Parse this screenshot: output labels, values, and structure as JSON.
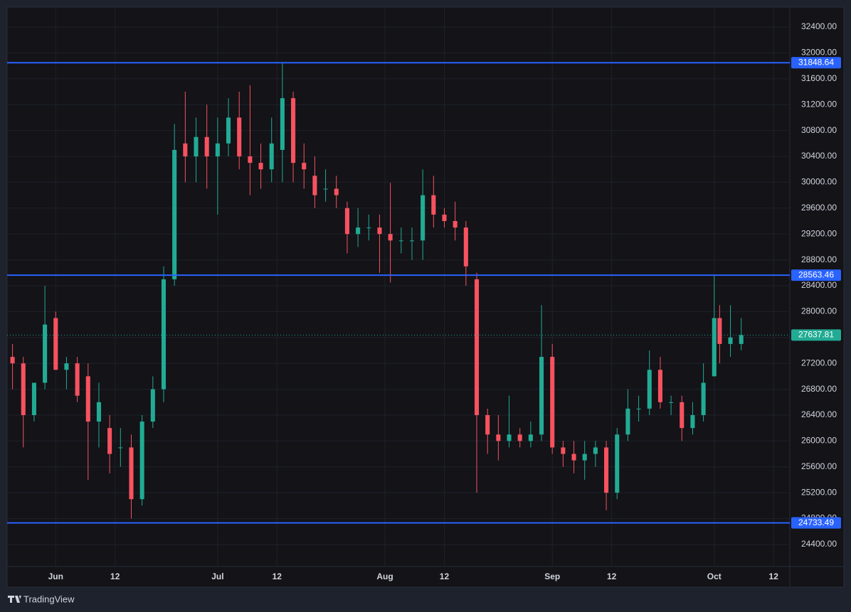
{
  "brand": "TradingView",
  "chart_data": {
    "type": "candlestick",
    "x": [
      "May 24",
      "May 26",
      "May 28",
      "May 30",
      "Jun 1",
      "Jun 3",
      "Jun 5",
      "Jun 7",
      "Jun 9",
      "Jun 11",
      "Jun 13",
      "Jun 15",
      "Jun 17",
      "Jun 19",
      "Jun 21",
      "Jun 23",
      "Jun 25",
      "Jun 27",
      "Jun 29",
      "Jul 1",
      "Jul 3",
      "Jul 5",
      "Jul 7",
      "Jul 9",
      "Jul 11",
      "Jul 13",
      "Jul 15",
      "Jul 17",
      "Jul 19",
      "Jul 21",
      "Jul 23",
      "Jul 25",
      "Jul 27",
      "Jul 29",
      "Jul 31",
      "Aug 2",
      "Aug 4",
      "Aug 6",
      "Aug 8",
      "Aug 10",
      "Aug 12",
      "Aug 14",
      "Aug 16",
      "Aug 18",
      "Aug 20",
      "Aug 22",
      "Aug 24",
      "Aug 26",
      "Aug 28",
      "Aug 30",
      "Sep 1",
      "Sep 3",
      "Sep 5",
      "Sep 7",
      "Sep 9",
      "Sep 11",
      "Sep 13",
      "Sep 15",
      "Sep 17",
      "Sep 19",
      "Sep 21",
      "Sep 23",
      "Sep 25",
      "Sep 27",
      "Sep 29",
      "Oct 1",
      "Oct 2",
      "Oct 4",
      "Oct 6"
    ],
    "open": [
      27300,
      27200,
      26400,
      26900,
      27900,
      27100,
      27200,
      27000,
      26300,
      26200,
      25900,
      25900,
      25100,
      26300,
      26800,
      28500,
      30600,
      30400,
      30700,
      30400,
      30600,
      31000,
      30400,
      30300,
      30200,
      30500,
      31300,
      30300,
      30100,
      29900,
      29900,
      29600,
      29200,
      29300,
      29300,
      29200,
      29100,
      29100,
      29100,
      29800,
      29500,
      29400,
      29300,
      28500,
      26400,
      26100,
      26000,
      26100,
      26000,
      26100,
      27300,
      25900,
      25800,
      25700,
      25800,
      25900,
      25200,
      26100,
      26500,
      26500,
      27100,
      26600,
      26600,
      26200,
      26400,
      27000,
      27900,
      27500,
      27500
    ],
    "high": [
      27500,
      27300,
      26900,
      28400,
      28000,
      27300,
      27300,
      27200,
      26900,
      26400,
      26200,
      26100,
      26400,
      27000,
      28700,
      30900,
      31400,
      31000,
      31200,
      31000,
      31300,
      31400,
      31500,
      30600,
      31000,
      31848,
      31400,
      30600,
      30400,
      30200,
      30100,
      29700,
      29600,
      29500,
      29500,
      29990,
      29300,
      29300,
      30200,
      30100,
      29600,
      29700,
      29400,
      28600,
      26500,
      26400,
      26700,
      26200,
      26300,
      28100,
      27500,
      26000,
      26000,
      26000,
      26000,
      26000,
      26200,
      26800,
      26700,
      27400,
      27300,
      26700,
      26700,
      26600,
      27200,
      28563,
      28100,
      28100,
      27900
    ],
    "low": [
      26800,
      25900,
      26300,
      26800,
      27100,
      26800,
      26600,
      25400,
      25900,
      25500,
      25600,
      24800,
      25000,
      26200,
      26600,
      28400,
      30000,
      30000,
      29900,
      29500,
      30400,
      30200,
      29800,
      29900,
      30000,
      30000,
      30000,
      29900,
      29600,
      29700,
      29600,
      28900,
      29000,
      29100,
      28600,
      28450,
      28900,
      28800,
      28800,
      29300,
      29300,
      29100,
      28400,
      25200,
      25800,
      25700,
      25900,
      25900,
      25900,
      26000,
      25800,
      25600,
      25500,
      25400,
      25600,
      24930,
      25100,
      26000,
      26300,
      26400,
      26500,
      26400,
      26000,
      26100,
      26300,
      27000,
      27200,
      27300,
      27400
    ],
    "close": [
      27200,
      26400,
      26900,
      27800,
      27100,
      27200,
      26700,
      26300,
      26600,
      25800,
      25900,
      25100,
      26300,
      26800,
      28500,
      30500,
      30400,
      30700,
      30400,
      30600,
      31000,
      30400,
      30300,
      30200,
      30600,
      31300,
      30300,
      30200,
      29800,
      29900,
      29800,
      29200,
      29300,
      29300,
      29200,
      29100,
      29100,
      29100,
      29800,
      29500,
      29400,
      29300,
      28700,
      26400,
      26100,
      26000,
      26100,
      26000,
      26100,
      27300,
      25900,
      25800,
      25700,
      25800,
      25900,
      25200,
      26100,
      26500,
      26500,
      27100,
      26600,
      26600,
      26200,
      26400,
      26900,
      27900,
      27500,
      27600,
      27637.81
    ],
    "up_color": "#22ab94",
    "down_color": "#f7525f",
    "levels": [
      31848.64,
      28563.46,
      24733.49
    ],
    "level_color": "#2962ff",
    "ylim": [
      24059,
      32708
    ],
    "yticks": [
      {
        "value": 24400,
        "label": "24400.00"
      },
      {
        "value": 24800,
        "label": "24800.00"
      },
      {
        "value": 25200,
        "label": "25200.00"
      },
      {
        "value": 25600,
        "label": "25600.00"
      },
      {
        "value": 26000,
        "label": "26000.00"
      },
      {
        "value": 26400,
        "label": "26400.00"
      },
      {
        "value": 26800,
        "label": "26800.00"
      },
      {
        "value": 27200,
        "label": "27200.00"
      },
      {
        "value": 27600,
        "label": "27600.00"
      },
      {
        "value": 28000,
        "label": "28000.00"
      },
      {
        "value": 28400,
        "label": "28400.00"
      },
      {
        "value": 28800,
        "label": "28800.00"
      },
      {
        "value": 29200,
        "label": "29200.00"
      },
      {
        "value": 29600,
        "label": "29600.00"
      },
      {
        "value": 30000,
        "label": "30000.00"
      },
      {
        "value": 30400,
        "label": "30400.00"
      },
      {
        "value": 30800,
        "label": "30800.00"
      },
      {
        "value": 31200,
        "label": "31200.00"
      },
      {
        "value": 31600,
        "label": "31600.00"
      },
      {
        "value": 32000,
        "label": "32000.00"
      },
      {
        "value": 32400,
        "label": "32400.00"
      }
    ],
    "xlim": [
      "May 23",
      "Oct 15"
    ],
    "xticks": [
      {
        "value": "Jun 1",
        "label": "Jun"
      },
      {
        "value": "Jun 12",
        "label": "12"
      },
      {
        "value": "Jul 1",
        "label": "Jul"
      },
      {
        "value": "Jul 12",
        "label": "12"
      },
      {
        "value": "Aug 1",
        "label": "Aug"
      },
      {
        "value": "Aug 12",
        "label": "12"
      },
      {
        "value": "Sep 1",
        "label": "Sep"
      },
      {
        "value": "Sep 12",
        "label": "12"
      },
      {
        "value": "Oct 1",
        "label": "Oct"
      },
      {
        "value": "Oct 12",
        "label": "12"
      }
    ],
    "grid": true
  }
}
